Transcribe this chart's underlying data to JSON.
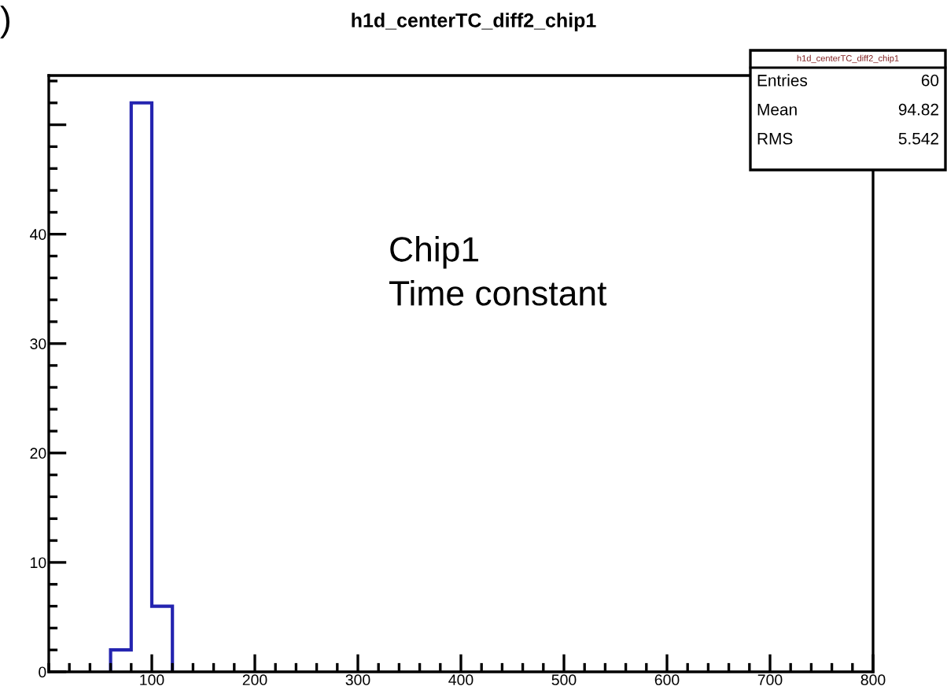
{
  "chart_data": {
    "type": "histogram",
    "title": "h1d_centerTC_diff2_chip1",
    "bins": [
      60,
      80,
      100,
      120
    ],
    "values": [
      2,
      52,
      6
    ],
    "color": "#2424b0",
    "xlim": [
      0,
      800
    ],
    "xticks": [
      100,
      200,
      300,
      400,
      500,
      600,
      700,
      800
    ],
    "ylim": [
      0,
      54.5
    ],
    "yticks": [
      0,
      10,
      20,
      30,
      40,
      {
        "value": 50,
        "label": null
      }
    ],
    "annotations": [
      ")",
      "Chip1\nTime constant",
      "h1d_centerTC_diff2_chip1",
      "Entries 60",
      "Mean 94.82",
      "RMS 5.542"
    ]
  }
}
